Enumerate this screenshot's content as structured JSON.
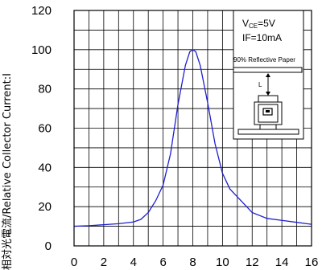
{
  "chart_data": {
    "type": "line",
    "title": "",
    "xlabel": "",
    "ylabel": "相対光電流/Relative Collector Current:I",
    "xlim": [
      0,
      16
    ],
    "ylim": [
      0,
      120
    ],
    "x_ticks": [
      "0",
      "2",
      "4",
      "6",
      "8",
      "10",
      "12",
      "14",
      "16"
    ],
    "y_ticks": [
      "0",
      "20",
      "40",
      "60",
      "80",
      "100",
      "120"
    ],
    "grid": true,
    "series": [
      {
        "color": "#1f1fd0",
        "x": [
          0,
          1,
          2,
          3,
          4,
          4.5,
          5,
          5.5,
          6,
          6.5,
          7,
          7.5,
          7.8,
          8,
          8.2,
          8.5,
          9,
          9.5,
          10,
          10.5,
          11,
          11.5,
          12,
          13,
          14,
          15,
          16
        ],
        "y": [
          10,
          10.3,
          10.8,
          11.3,
          12.2,
          13.5,
          17,
          23,
          31,
          47,
          72,
          92,
          99,
          100,
          99,
          92,
          73,
          52,
          37,
          29,
          25,
          21,
          17,
          14,
          13,
          12,
          11
        ]
      }
    ]
  },
  "annotations": {
    "vce_prefix": "V",
    "vce_sub": "CE",
    "vce_value": "=5V",
    "if_label": "IF=10mA",
    "paper_label": "90% Reflective Paper",
    "distance_label": "L"
  }
}
